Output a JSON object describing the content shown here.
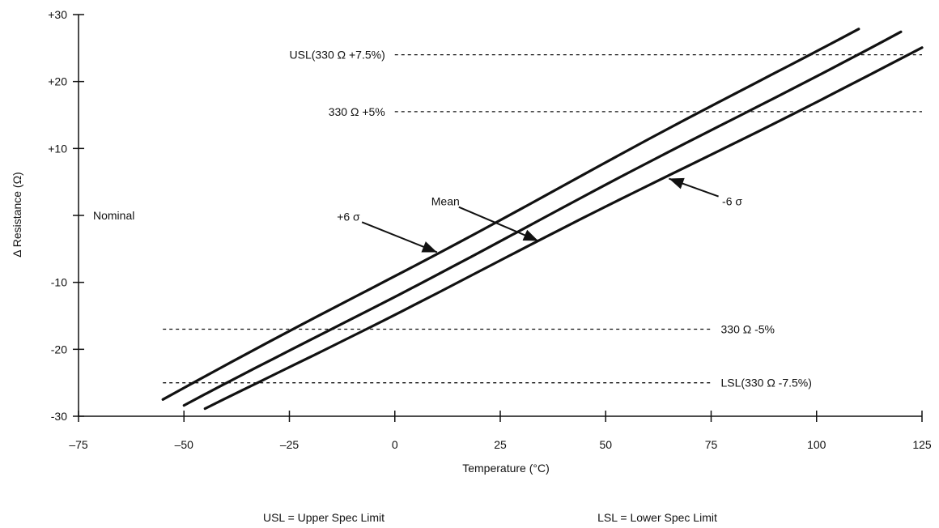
{
  "chart_data": {
    "type": "line",
    "title": "",
    "xlabel": "Temperature (°C)",
    "ylabel": "Δ  Resistance (Ω)",
    "xlim": [
      -75,
      125
    ],
    "ylim": [
      -30,
      30
    ],
    "grid": false,
    "x_ticks": [
      {
        "value": -75,
        "label": "–75"
      },
      {
        "value": -50,
        "label": "–50"
      },
      {
        "value": -25,
        "label": "–25"
      },
      {
        "value": 0,
        "label": "0"
      },
      {
        "value": 25,
        "label": "25"
      },
      {
        "value": 50,
        "label": "50"
      },
      {
        "value": 75,
        "label": "75"
      },
      {
        "value": 100,
        "label": "100"
      },
      {
        "value": 125,
        "label": "125"
      }
    ],
    "y_ticks": [
      {
        "value": 30,
        "label": "+30"
      },
      {
        "value": 20,
        "label": "+20"
      },
      {
        "value": 10,
        "label": "+10"
      },
      {
        "value": 0,
        "label": "Nominal"
      },
      {
        "value": -10,
        "label": "-10"
      },
      {
        "value": -20,
        "label": "-20"
      },
      {
        "value": -30,
        "label": "-30"
      }
    ],
    "series": [
      {
        "name": "+6 σ",
        "x": [
          -55,
          110
        ],
        "y": [
          -27.5,
          28
        ]
      },
      {
        "name": "Mean",
        "x": [
          -50,
          120
        ],
        "y": [
          -28.5,
          27.5
        ]
      },
      {
        "name": "-6 σ",
        "x": [
          -45,
          125
        ],
        "y": [
          -29,
          25
        ]
      }
    ],
    "reference_lines": [
      {
        "label": "USL(330 Ω +7.5%)",
        "y": 24,
        "x_start": 0,
        "x_end": 125
      },
      {
        "label": "330  Ω +5%",
        "y": 15.5,
        "x_start": 0,
        "x_end": 125
      },
      {
        "label": "330  Ω  -5%",
        "y": -17,
        "x_start": -55,
        "x_end": 75
      },
      {
        "label": "LSL(330  Ω  -7.5%)",
        "y": -25,
        "x_start": -55,
        "x_end": 75
      }
    ],
    "annotations": [
      {
        "text": "+6 σ",
        "x": -11,
        "y": -0.8,
        "arrow_to": [
          10,
          -5.5
        ]
      },
      {
        "text": "Mean",
        "x": 12,
        "y": 1.5,
        "arrow_to": [
          34,
          -3.8
        ]
      },
      {
        "text": "-6 σ",
        "x": 80,
        "y": 1.5,
        "arrow_to": [
          65,
          5.5
        ]
      }
    ],
    "legend_notes": [
      "USL = Upper Spec Limit",
      "LSL = Lower Spec Limit"
    ]
  }
}
